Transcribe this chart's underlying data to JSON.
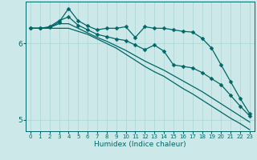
{
  "xlabel": "Humidex (Indice chaleur)",
  "background_color": "#cce8e8",
  "line_color": "#006666",
  "grid_color": "#aad4d4",
  "xlim": [
    -0.5,
    23.5
  ],
  "ylim": [
    4.85,
    6.55
  ],
  "xticks": [
    0,
    1,
    2,
    3,
    4,
    5,
    6,
    7,
    8,
    9,
    10,
    11,
    12,
    13,
    14,
    15,
    16,
    17,
    18,
    19,
    20,
    21,
    22,
    23
  ],
  "yticks": [
    5,
    6
  ],
  "series": [
    {
      "y": [
        6.2,
        6.2,
        6.21,
        6.28,
        6.46,
        6.3,
        6.23,
        6.18,
        6.2,
        6.2,
        6.22,
        6.08,
        6.22,
        6.2,
        6.2,
        6.18,
        6.16,
        6.15,
        6.07,
        5.94,
        5.72,
        5.5,
        5.28,
        5.08
      ],
      "marker": true
    },
    {
      "y": [
        6.2,
        6.2,
        6.22,
        6.3,
        6.35,
        6.24,
        6.18,
        6.12,
        6.09,
        6.06,
        6.04,
        5.98,
        5.92,
        5.98,
        5.9,
        5.72,
        5.7,
        5.68,
        5.62,
        5.54,
        5.46,
        5.32,
        5.18,
        5.05
      ],
      "marker": true
    },
    {
      "y": [
        6.2,
        6.2,
        6.21,
        6.26,
        6.26,
        6.2,
        6.14,
        6.08,
        6.03,
        5.97,
        5.91,
        5.84,
        5.77,
        5.71,
        5.65,
        5.58,
        5.51,
        5.44,
        5.37,
        5.29,
        5.21,
        5.13,
        5.05,
        4.97
      ],
      "marker": false
    },
    {
      "y": [
        6.2,
        6.2,
        6.2,
        6.2,
        6.2,
        6.16,
        6.12,
        6.06,
        6.0,
        5.94,
        5.86,
        5.78,
        5.7,
        5.63,
        5.57,
        5.49,
        5.41,
        5.34,
        5.26,
        5.18,
        5.1,
        5.02,
        4.95,
        4.87
      ],
      "marker": false
    }
  ],
  "marker_style": "D",
  "marker_size": 2.5,
  "line_width": 0.9
}
